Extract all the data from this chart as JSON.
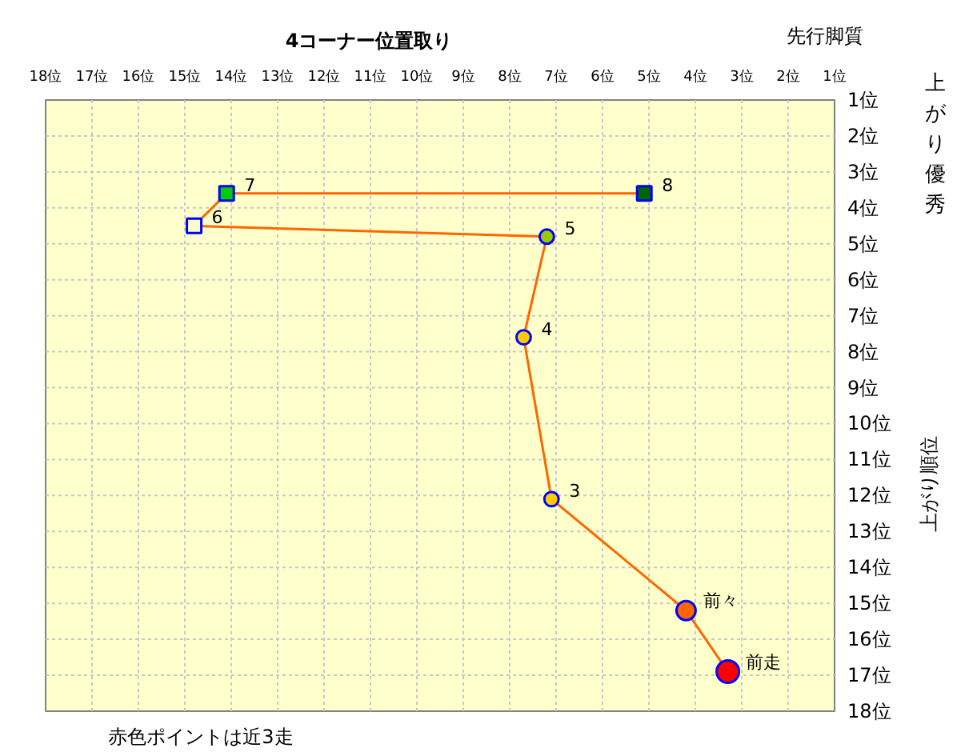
{
  "chart_data": {
    "type": "scatter",
    "xlabel": "4コーナー位置取り",
    "ylabel": "上がり順位",
    "xlim": [
      18,
      1
    ],
    "ylim": [
      18,
      1
    ],
    "xticks": [
      {
        "value": 18,
        "label": "18位"
      },
      {
        "value": 17,
        "label": "17位"
      },
      {
        "value": 16,
        "label": "16位"
      },
      {
        "value": 15,
        "label": "15位"
      },
      {
        "value": 14,
        "label": "14位"
      },
      {
        "value": 13,
        "label": "13位"
      },
      {
        "value": 12,
        "label": "12位"
      },
      {
        "value": 11,
        "label": "11位"
      },
      {
        "value": 10,
        "label": "10位"
      },
      {
        "value": 9,
        "label": "9位"
      },
      {
        "value": 8,
        "label": "8位"
      },
      {
        "value": 7,
        "label": "7位"
      },
      {
        "value": 6,
        "label": "6位"
      },
      {
        "value": 5,
        "label": "5位"
      },
      {
        "value": 4,
        "label": "4位"
      },
      {
        "value": 3,
        "label": "3位"
      },
      {
        "value": 2,
        "label": "2位"
      },
      {
        "value": 1,
        "label": "1位"
      }
    ],
    "yticks": [
      {
        "value": 1,
        "label": "1位"
      },
      {
        "value": 2,
        "label": "2位"
      },
      {
        "value": 3,
        "label": "3位"
      },
      {
        "value": 4,
        "label": "4位"
      },
      {
        "value": 5,
        "label": "5位"
      },
      {
        "value": 6,
        "label": "6位"
      },
      {
        "value": 7,
        "label": "7位"
      },
      {
        "value": 8,
        "label": "8位"
      },
      {
        "value": 9,
        "label": "9位"
      },
      {
        "value": 10,
        "label": "10位"
      },
      {
        "value": 11,
        "label": "11位"
      },
      {
        "value": 12,
        "label": "12位"
      },
      {
        "value": 13,
        "label": "13位"
      },
      {
        "value": 14,
        "label": "14位"
      },
      {
        "value": 15,
        "label": "15位"
      },
      {
        "value": 16,
        "label": "16位"
      },
      {
        "value": 17,
        "label": "17位"
      },
      {
        "value": 18,
        "label": "18位"
      }
    ],
    "grid": true,
    "series": [
      {
        "type": "line",
        "color": "#ff6600",
        "marker": "none",
        "line_style": "solid",
        "x": [
          3.3,
          4.2,
          7.1,
          7.7,
          7.2,
          14.8,
          14.1,
          5.1
        ],
        "values": [
          16.9,
          15.2,
          12.1,
          7.6,
          4.8,
          4.5,
          3.6,
          3.6
        ]
      },
      {
        "type": "bubble",
        "marker": "circle",
        "x": [
          3.3,
          4.2,
          7.1,
          7.7,
          7.2
        ],
        "values": [
          16.9,
          15.2,
          12.1,
          7.6,
          4.8
        ],
        "sizes": [
          1,
          0.73,
          0.41,
          0.41,
          0.41
        ],
        "colors": [
          "#ff0000",
          "#ff6600",
          "#ffcc00",
          "#ffcc00",
          "#99cc00"
        ]
      },
      {
        "marker": "square",
        "x": [
          14.8,
          14.1,
          5.1
        ],
        "values": [
          4.5,
          3.6,
          3.6
        ],
        "colors": [
          "#ffffcc",
          "#00cc00",
          "#006600"
        ]
      }
    ],
    "annotations": [
      {
        "text": "前走",
        "x": 3.3,
        "y": 16.9
      },
      {
        "text": "前々",
        "x": 4.2,
        "y": 15.2
      },
      {
        "text": "3",
        "x": 7.1,
        "y": 12.1
      },
      {
        "text": "4",
        "x": 7.7,
        "y": 7.6
      },
      {
        "text": "5",
        "x": 7.2,
        "y": 4.8
      },
      {
        "text": "6",
        "x": 14.8,
        "y": 4.5
      },
      {
        "text": "7",
        "x": 14.1,
        "y": 3.6
      },
      {
        "text": "8",
        "x": 5.1,
        "y": 3.6
      },
      "先行脚質",
      "上がり優秀",
      "赤色ポイントは近3走"
    ]
  }
}
